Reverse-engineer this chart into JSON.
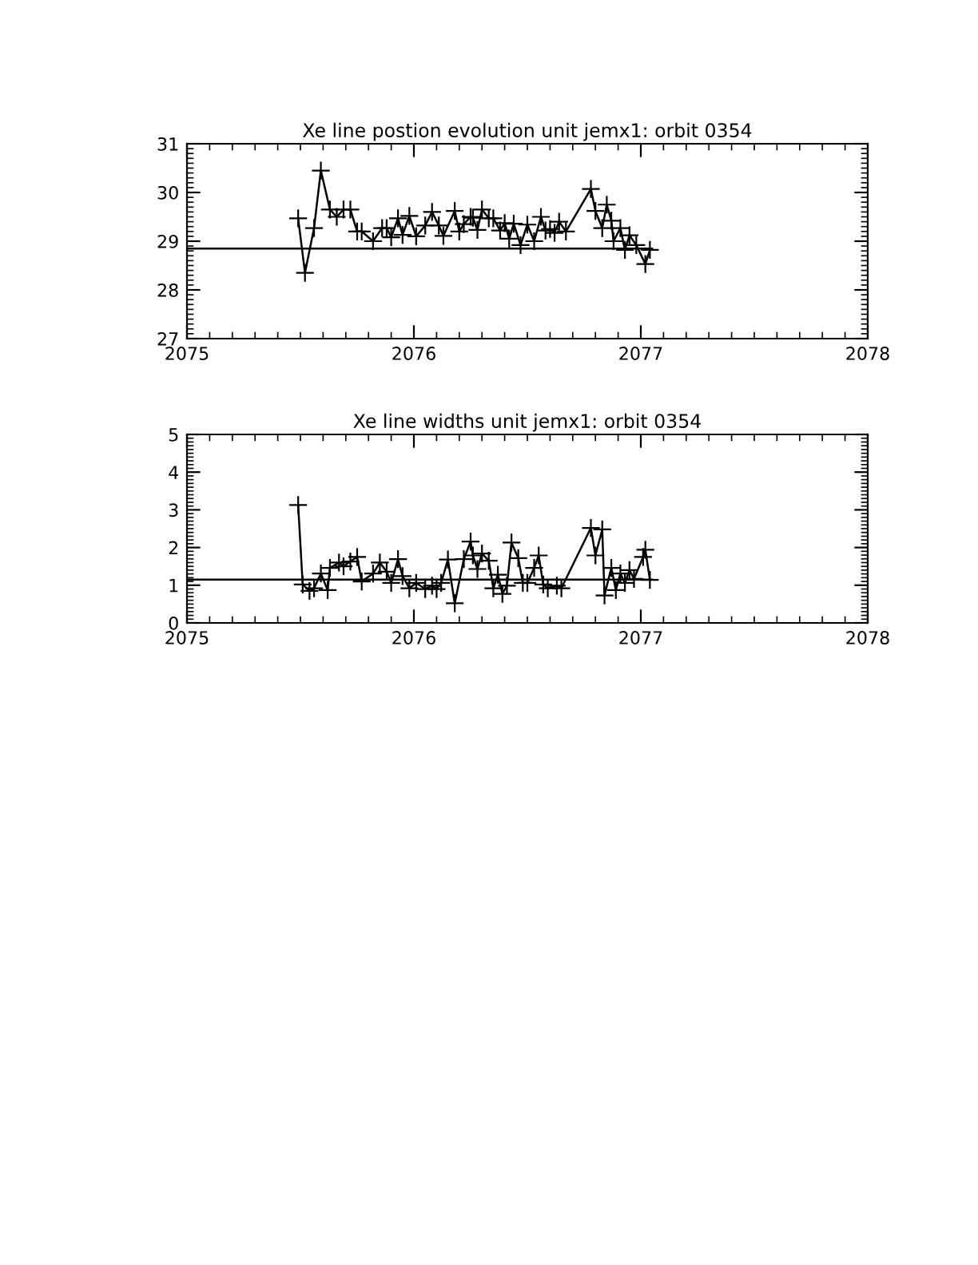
{
  "chart_data": [
    {
      "type": "line",
      "title": "Xe line postion evolution unit jemx1: orbit 0354",
      "marker": "cross",
      "line_style": "solid",
      "xlim": [
        2075,
        2078
      ],
      "xticks": [
        2075,
        2076,
        2077,
        2078
      ],
      "ylim": [
        27,
        31
      ],
      "yticks": [
        27,
        28,
        29,
        30,
        31
      ],
      "series": [
        {
          "color": "#000000",
          "x": [
            2075.49,
            2075.52,
            2075.56,
            2075.59,
            2075.63,
            2075.66,
            2075.69,
            2075.72,
            2075.75,
            2075.77,
            2075.82,
            2075.86,
            2075.88,
            2075.9,
            2075.93,
            2075.95,
            2075.98,
            2076.01,
            2076.05,
            2076.08,
            2076.11,
            2076.13,
            2076.18,
            2076.2,
            2076.22,
            2076.25,
            2076.26,
            2076.28,
            2076.3,
            2076.33,
            2076.35,
            2076.38,
            2076.4,
            2076.42,
            2076.44,
            2076.47,
            2076.5,
            2076.53,
            2076.56,
            2076.58,
            2076.6,
            2076.62,
            2076.64,
            2076.67,
            2076.78,
            2076.8,
            2076.83,
            2076.85,
            2076.87,
            2076.88,
            2076.91,
            2076.93,
            2076.95,
            2076.98,
            2077.02,
            2077.04
          ],
          "values": [
            29.47,
            28.35,
            29.27,
            30.45,
            29.65,
            29.5,
            29.65,
            29.65,
            29.2,
            29.2,
            29.0,
            29.27,
            29.27,
            29.08,
            29.47,
            29.13,
            29.52,
            29.1,
            29.32,
            29.6,
            29.32,
            29.11,
            29.62,
            29.2,
            29.35,
            29.5,
            29.48,
            29.23,
            29.65,
            29.47,
            29.47,
            29.22,
            29.37,
            29.05,
            29.36,
            28.92,
            29.34,
            29.0,
            29.5,
            29.22,
            29.25,
            29.17,
            29.4,
            29.2,
            30.07,
            29.62,
            29.27,
            29.75,
            29.42,
            29.0,
            29.27,
            28.82,
            29.12,
            28.92,
            28.53,
            28.82
          ]
        },
        {
          "color": "#000000",
          "marker": "none",
          "x": [
            2075,
            2077.05
          ],
          "values": [
            28.85,
            28.85
          ]
        }
      ]
    },
    {
      "type": "line",
      "title": "Xe line widths unit jemx1: orbit 0354",
      "marker": "cross",
      "line_style": "solid",
      "xlim": [
        2075,
        2078
      ],
      "xticks": [
        2075,
        2076,
        2077,
        2078
      ],
      "ylim": [
        0,
        5
      ],
      "yticks": [
        0,
        1,
        2,
        3,
        4,
        5
      ],
      "series": [
        {
          "color": "#000000",
          "x": [
            2075.49,
            2075.51,
            2075.54,
            2075.56,
            2075.59,
            2075.62,
            2075.63,
            2075.67,
            2075.69,
            2075.72,
            2075.75,
            2075.77,
            2075.82,
            2075.85,
            2075.88,
            2075.9,
            2075.93,
            2075.95,
            2075.98,
            2076.01,
            2076.05,
            2076.08,
            2076.1,
            2076.12,
            2076.15,
            2076.18,
            2076.22,
            2076.25,
            2076.26,
            2076.28,
            2076.3,
            2076.33,
            2076.35,
            2076.37,
            2076.39,
            2076.41,
            2076.43,
            2076.46,
            2076.48,
            2076.5,
            2076.53,
            2076.55,
            2076.57,
            2076.59,
            2076.63,
            2076.65,
            2076.78,
            2076.8,
            2076.83,
            2076.84,
            2076.87,
            2076.89,
            2076.91,
            2076.93,
            2076.95,
            2076.97,
            2077.01,
            2077.02,
            2077.04
          ],
          "values": [
            3.13,
            1.02,
            0.85,
            0.92,
            1.31,
            0.87,
            1.46,
            1.6,
            1.5,
            1.63,
            1.75,
            1.1,
            1.31,
            1.6,
            1.36,
            1.06,
            1.69,
            1.24,
            0.92,
            1.06,
            0.9,
            0.99,
            0.9,
            1.06,
            1.68,
            0.52,
            1.69,
            2.16,
            1.79,
            1.43,
            1.84,
            1.65,
            0.92,
            1.28,
            0.77,
            0.99,
            2.13,
            1.72,
            1.06,
            1.06,
            1.46,
            1.79,
            1.02,
            0.92,
            0.99,
            0.92,
            2.52,
            1.79,
            2.48,
            0.73,
            1.46,
            0.87,
            1.31,
            1.06,
            1.4,
            1.17,
            1.75,
            1.94,
            1.14
          ]
        },
        {
          "color": "#000000",
          "marker": "none",
          "x": [
            2075,
            2077.05
          ],
          "values": [
            1.15,
            1.15
          ]
        }
      ]
    }
  ]
}
